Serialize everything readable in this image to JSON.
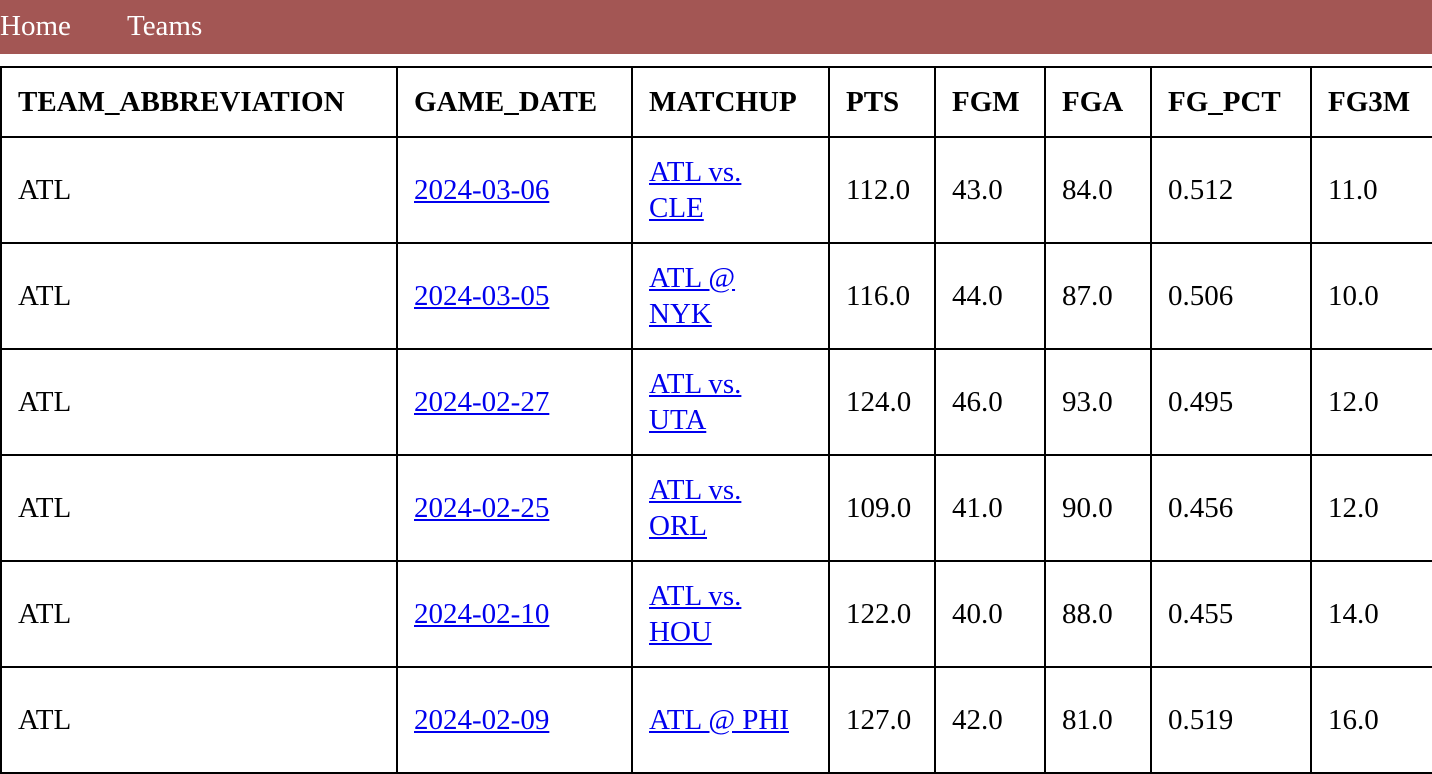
{
  "nav": {
    "items": [
      {
        "label": "Home"
      },
      {
        "label": "Teams"
      }
    ]
  },
  "colors": {
    "navbar_background": "#a35654",
    "link": "#0000ee"
  },
  "table": {
    "columns": [
      "TEAM_ABBREVIATION",
      "GAME_DATE",
      "MATCHUP",
      "PTS",
      "FGM",
      "FGA",
      "FG_PCT",
      "FG3M"
    ],
    "rows": [
      {
        "team": "ATL",
        "date": "2024-03-06",
        "matchup": "ATL vs. CLE",
        "pts": "112.0",
        "fgm": "43.0",
        "fga": "84.0",
        "fg_pct": "0.512",
        "fg3m": "11.0"
      },
      {
        "team": "ATL",
        "date": "2024-03-05",
        "matchup": "ATL @ NYK",
        "pts": "116.0",
        "fgm": "44.0",
        "fga": "87.0",
        "fg_pct": "0.506",
        "fg3m": "10.0"
      },
      {
        "team": "ATL",
        "date": "2024-02-27",
        "matchup": "ATL vs. UTA",
        "pts": "124.0",
        "fgm": "46.0",
        "fga": "93.0",
        "fg_pct": "0.495",
        "fg3m": "12.0"
      },
      {
        "team": "ATL",
        "date": "2024-02-25",
        "matchup": "ATL vs. ORL",
        "pts": "109.0",
        "fgm": "41.0",
        "fga": "90.0",
        "fg_pct": "0.456",
        "fg3m": "12.0"
      },
      {
        "team": "ATL",
        "date": "2024-02-10",
        "matchup": "ATL vs. HOU",
        "pts": "122.0",
        "fgm": "40.0",
        "fga": "88.0",
        "fg_pct": "0.455",
        "fg3m": "14.0"
      },
      {
        "team": "ATL",
        "date": "2024-02-09",
        "matchup": "ATL @ PHI",
        "pts": "127.0",
        "fgm": "42.0",
        "fga": "81.0",
        "fg_pct": "0.519",
        "fg3m": "16.0"
      }
    ]
  }
}
